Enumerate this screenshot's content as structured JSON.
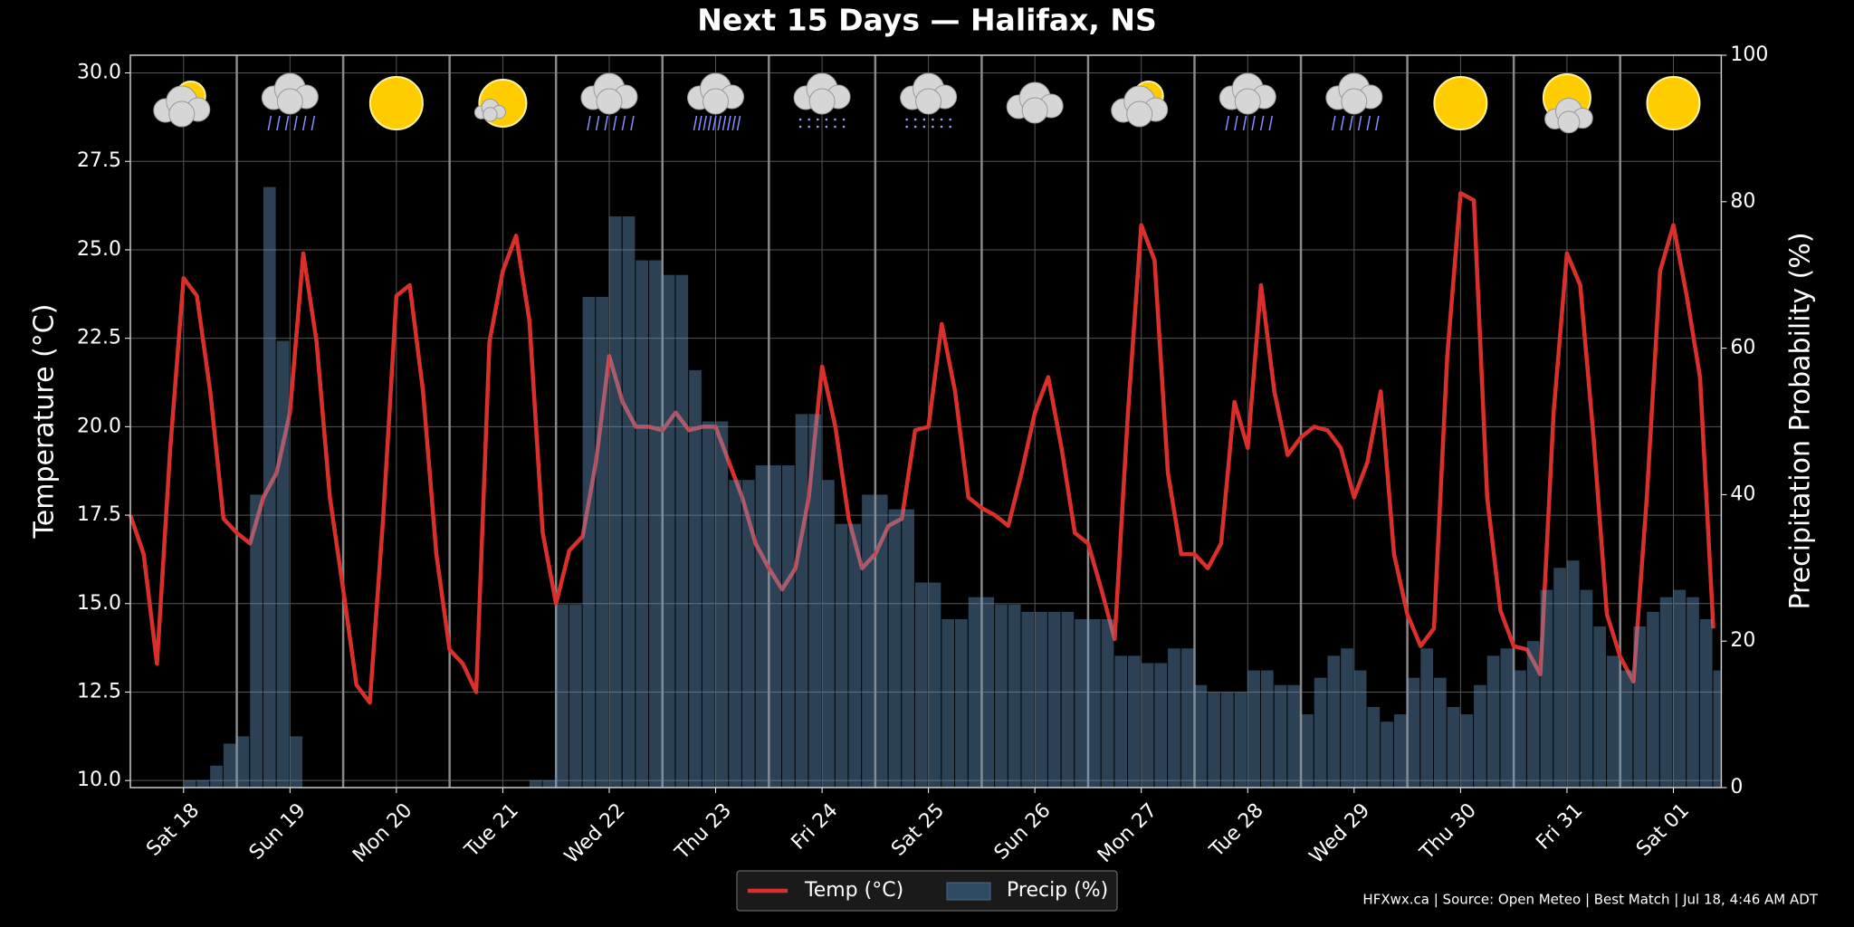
{
  "chart_data": {
    "type": "line_bar",
    "title": "Next 15 Days — Halifax, NS",
    "ylabel": "Temperature (°C)",
    "y2label": "Precipitation Probability (%)",
    "footer": "HFXwx.ca | Source: Open Meteo | Best Match | Jul 18, 4:46 AM ADT",
    "categories": [
      "Sat 18",
      "Sun 19",
      "Mon 20",
      "Tue 21",
      "Wed 22",
      "Thu 23",
      "Fri 24",
      "Sat 25",
      "Sun 26",
      "Mon 27",
      "Tue 28",
      "Wed 29",
      "Thu 30",
      "Fri 31",
      "Sat 01"
    ],
    "series": [
      {
        "name": "Temp (°C)",
        "color": "#d9302c",
        "axis": "y",
        "kind": "line",
        "values": [
          [
            17.5,
            16.4,
            13.3,
            19.4,
            24.2,
            23.7,
            21.0,
            17.4
          ],
          [
            17.0,
            16.7,
            18.0,
            18.7,
            20.4,
            24.9,
            22.4,
            18.0
          ],
          [
            15.4,
            12.7,
            12.2,
            17.4,
            23.7,
            24.0,
            21.0,
            16.4
          ],
          [
            13.7,
            13.3,
            12.5,
            22.4,
            24.4,
            25.4,
            23.0,
            17.0
          ],
          [
            15.0,
            16.5,
            16.9,
            19.0,
            22.0,
            20.7,
            20.0,
            20.0
          ],
          [
            19.9,
            20.4,
            19.9,
            20.0,
            20.0,
            19.0,
            18.0,
            16.7
          ],
          [
            16.0,
            15.4,
            16.0,
            18.0,
            21.7,
            20.0,
            17.4,
            16.0
          ],
          [
            16.4,
            17.2,
            17.4,
            19.9,
            20.0,
            22.9,
            21.0,
            18.0
          ],
          [
            17.7,
            17.5,
            17.2,
            18.7,
            20.4,
            21.4,
            19.4,
            17.0
          ],
          [
            16.7,
            15.4,
            14.0,
            20.4,
            25.7,
            24.7,
            18.7,
            16.4
          ],
          [
            16.4,
            16.0,
            16.7,
            20.7,
            19.4,
            24.0,
            21.0,
            19.2
          ],
          [
            19.7,
            20.0,
            19.9,
            19.4,
            18.0,
            19.0,
            21.0,
            16.4
          ],
          [
            14.7,
            13.8,
            14.3,
            22.0,
            26.6,
            26.4,
            18.0,
            14.8
          ],
          [
            13.8,
            13.7,
            13.0,
            20.4,
            24.9,
            24.0,
            19.7,
            14.7
          ],
          [
            13.5,
            12.8,
            18.0,
            24.4,
            25.7,
            23.7,
            21.4,
            14.3
          ]
        ]
      },
      {
        "name": "Precip (%)",
        "color": "#2f4a63",
        "axis": "y2",
        "kind": "bar",
        "values": [
          [
            0,
            0,
            0,
            0,
            1,
            1,
            3,
            6
          ],
          [
            7,
            40,
            82,
            61,
            7,
            0,
            0,
            0
          ],
          [
            0,
            0,
            0,
            0,
            0,
            0,
            0,
            0
          ],
          [
            0,
            0,
            0,
            0,
            0,
            0,
            1,
            1
          ],
          [
            25,
            25,
            67,
            67,
            78,
            78,
            72,
            72
          ],
          [
            70,
            70,
            57,
            50,
            50,
            42,
            42,
            44
          ],
          [
            44,
            44,
            51,
            51,
            42,
            36,
            36,
            40
          ],
          [
            40,
            38,
            38,
            28,
            28,
            23,
            23,
            26
          ],
          [
            26,
            25,
            25,
            24,
            24,
            24,
            24,
            23
          ],
          [
            23,
            23,
            18,
            18,
            17,
            17,
            19,
            19
          ],
          [
            14,
            13,
            13,
            13,
            16,
            16,
            14,
            14
          ],
          [
            10,
            15,
            18,
            19,
            16,
            11,
            9,
            10
          ],
          [
            15,
            19,
            15,
            11,
            10,
            14,
            18,
            19
          ],
          [
            16,
            20,
            27,
            30,
            31,
            27,
            22,
            18
          ],
          [
            16,
            22,
            24,
            26,
            27,
            26,
            23,
            16
          ]
        ]
      }
    ],
    "ylim": [
      9.8,
      30.5
    ],
    "yticks": [
      {
        "value": 10,
        "label": "10.0"
      },
      {
        "value": 12.5,
        "label": "12.5"
      },
      {
        "value": 15,
        "label": "15.0"
      },
      {
        "value": 17.5,
        "label": "17.5"
      },
      {
        "value": 20,
        "label": "20.0"
      },
      {
        "value": 22.5,
        "label": "22.5"
      },
      {
        "value": 25,
        "label": "25.0"
      },
      {
        "value": 27.5,
        "label": "27.5"
      },
      {
        "value": 30,
        "label": "30.0"
      }
    ],
    "y2lim": [
      0,
      100
    ],
    "y2ticks": [
      0,
      20,
      40,
      60,
      80,
      100
    ],
    "grid": true,
    "legend": "bottom"
  }
}
